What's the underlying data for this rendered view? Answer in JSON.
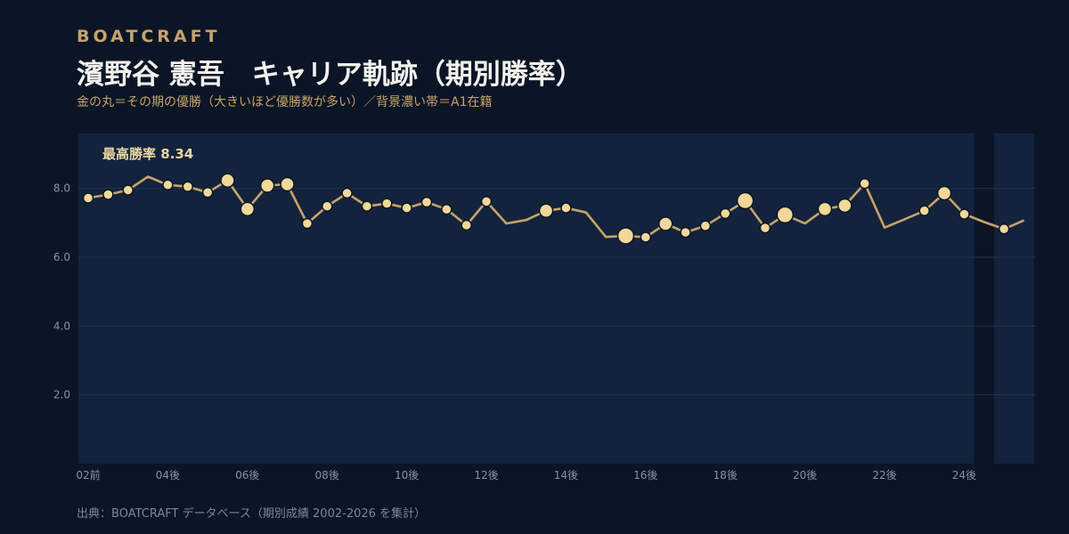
{
  "header": {
    "brand": "BOATCRAFT",
    "title": "濱野谷 憲吾　キャリア軌跡（期別勝率）",
    "subtitle": "金の丸＝その期の優勝（大きいほど優勝数が多い）／背景濃い帯＝A1在籍",
    "source": "出典：BOATCRAFT データベース（期別成績 2002-2026 を集計）"
  },
  "colors": {
    "background": "#0b1526",
    "a1_band": "#13233d",
    "gridline": "#22324a",
    "line": "#c7a468",
    "marker_fill": "#f1d899",
    "marker_stroke": "#0b1526",
    "annotation": "#ead7a4",
    "tick": "#8892a3"
  },
  "chart_data": {
    "type": "line",
    "x_labels": [
      "02前",
      "04後",
      "06後",
      "08後",
      "10後",
      "12後",
      "14後",
      "16後",
      "18後",
      "20後",
      "22後",
      "24後"
    ],
    "y_ticks": [
      "2.0",
      "4.0",
      "6.0",
      "8.0"
    ],
    "ylim": [
      0,
      9.5
    ],
    "grid": true,
    "annotation": "最高勝率 8.34",
    "a1_bands": [
      [
        0,
        45
      ],
      [
        46,
        48
      ]
    ],
    "series": [
      {
        "values": [
          7.72,
          7.82,
          7.95,
          8.34,
          8.1,
          8.05,
          7.88,
          8.23,
          7.4,
          8.08,
          8.12,
          6.98,
          7.48,
          7.86,
          7.48,
          7.56,
          7.43,
          7.6,
          7.39,
          6.93,
          7.62,
          6.98,
          7.08,
          7.35,
          7.43,
          7.3,
          6.59,
          6.62,
          6.58,
          6.97,
          6.72,
          6.91,
          7.27,
          7.64,
          6.85,
          7.23,
          6.98,
          7.4,
          7.5,
          8.14,
          6.86,
          7.1,
          7.35,
          7.86,
          7.25,
          7.02,
          6.82,
          7.07
        ],
        "wins": [
          1,
          1,
          1,
          0,
          1,
          1,
          1,
          2,
          2,
          2,
          2,
          1,
          1,
          1,
          1,
          1,
          1,
          1,
          1,
          1,
          1,
          0,
          0,
          2,
          1,
          0,
          0,
          3,
          1,
          2,
          1,
          1,
          1,
          3,
          1,
          3,
          0,
          2,
          2,
          1,
          0,
          0,
          1,
          2,
          1,
          0,
          1,
          0
        ]
      }
    ]
  }
}
